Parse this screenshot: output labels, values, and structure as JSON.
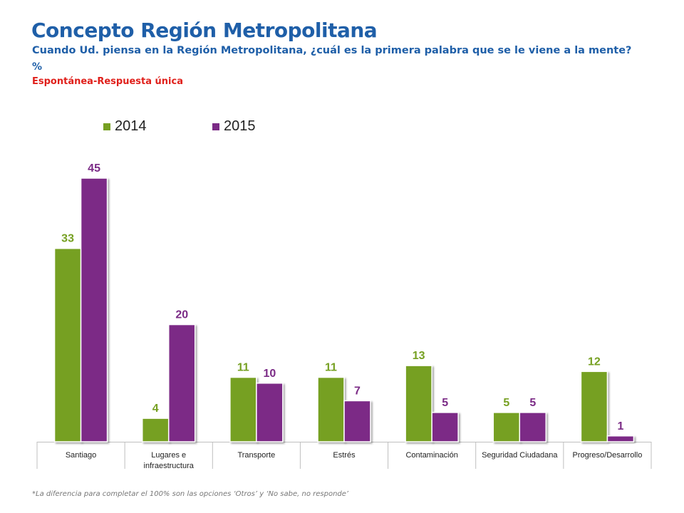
{
  "header": {
    "title": "Concepto Región Metropolitana",
    "subtitle": "Cuando Ud. piensa en la Región Metropolitana, ¿cuál es la primera palabra que se le viene a la mente?",
    "unit": "%",
    "mode": "Espontánea-Respuesta única"
  },
  "footnote": "*La diferencia para completar el 100% son las opciones ‘Otros’ y ‘No sabe, no responde’",
  "chart_data": {
    "type": "bar",
    "categories": [
      "Santiago",
      "Lugares e infraestructura",
      "Transporte",
      "Estrés",
      "Contaminación",
      "Seguridad Ciudadana",
      "Progreso/Desarrollo"
    ],
    "category_lines": [
      [
        "Santiago"
      ],
      [
        "Lugares e",
        "infraestructura"
      ],
      [
        "Transporte"
      ],
      [
        "Estrés"
      ],
      [
        "Contaminación"
      ],
      [
        "Seguridad Ciudadana"
      ],
      [
        "Progreso/Desarrollo"
      ]
    ],
    "series": [
      {
        "name": "2014",
        "color": "#76a022",
        "values": [
          33,
          4,
          11,
          11,
          13,
          5,
          12
        ]
      },
      {
        "name": "2015",
        "color": "#7b2b86",
        "values": [
          45,
          20,
          10,
          7,
          5,
          5,
          1
        ]
      }
    ],
    "ylim": [
      0,
      45
    ],
    "grid": false,
    "legend": "top-left",
    "data_labels": true
  }
}
